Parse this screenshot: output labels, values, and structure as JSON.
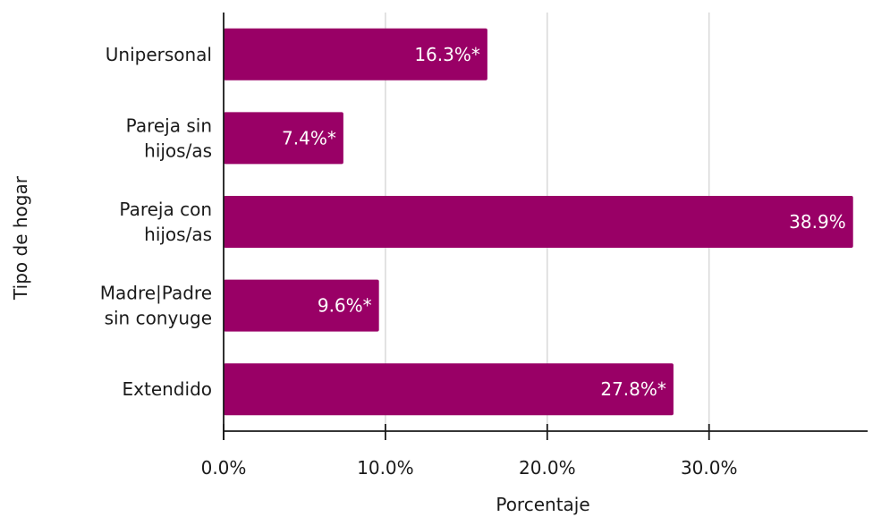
{
  "chart_data": {
    "type": "bar",
    "orientation": "horizontal",
    "categories": [
      [
        "Unipersonal"
      ],
      [
        "Pareja sin",
        "hijos/as"
      ],
      [
        "Pareja con",
        "hijos/as"
      ],
      [
        "Madre|Padre",
        "sin conyuge"
      ],
      [
        "Extendido"
      ]
    ],
    "values": [
      16.3,
      7.4,
      38.9,
      9.6,
      27.8
    ],
    "data_labels": [
      "16.3%*",
      "7.4%*",
      "38.9%",
      "9.6%*",
      "27.8%*"
    ],
    "xlabel": "Porcentaje",
    "ylabel": "Tipo de hogar",
    "xlim": [
      0,
      39.8
    ],
    "xticks": [
      0,
      10,
      20,
      30
    ],
    "xtick_labels": [
      "0.0%",
      "10.0%",
      "20.0%",
      "30.0%"
    ],
    "bar_color": "#990066",
    "grid": "vertical"
  }
}
